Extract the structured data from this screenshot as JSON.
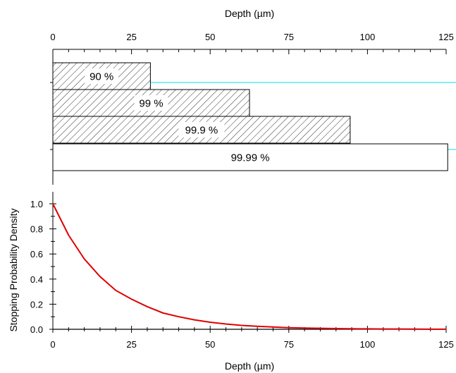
{
  "chart_data": [
    {
      "type": "bar",
      "orientation": "horizontal",
      "xlabel": "Depth (µm)",
      "xlim": [
        0,
        125
      ],
      "x_ticks": [
        "0",
        "25",
        "50",
        "75",
        "100",
        "125"
      ],
      "grid": false,
      "series": [
        {
          "name": "90 %",
          "value": 31,
          "fill": "hatched"
        },
        {
          "name": "99 %",
          "value": 62.5,
          "fill": "hatched"
        },
        {
          "name": "99.9 %",
          "value": 94.5,
          "fill": "hatched"
        },
        {
          "name": "99.99 %",
          "value": 125.5,
          "fill": "empty"
        }
      ],
      "reference_line_color": "#00e5ee",
      "bar_edge_color": "#000000"
    },
    {
      "type": "line",
      "xlabel": "Depth (µm)",
      "ylabel": "Stopping Probability Density",
      "xlim": [
        0,
        125
      ],
      "ylim": [
        0,
        1.0
      ],
      "x_ticks": [
        "0",
        "25",
        "50",
        "75",
        "100",
        "125"
      ],
      "y_ticks": [
        "0.0",
        "0.2",
        "0.4",
        "0.6",
        "0.8",
        "1.0"
      ],
      "grid": false,
      "series": [
        {
          "color": "#e00000",
          "x": [
            0,
            5,
            10,
            15,
            20,
            25,
            30,
            35,
            40,
            45,
            50,
            55,
            60,
            65,
            70,
            75,
            80,
            85,
            90,
            95,
            100,
            105,
            110,
            115,
            120,
            125
          ],
          "y": [
            1.0,
            0.75,
            0.56,
            0.42,
            0.31,
            0.24,
            0.18,
            0.13,
            0.1,
            0.075,
            0.056,
            0.042,
            0.031,
            0.024,
            0.018,
            0.013,
            0.01,
            0.0075,
            0.0056,
            0.0042,
            0.0032,
            0.0024,
            0.0018,
            0.0013,
            0.001,
            0.0008
          ]
        }
      ]
    }
  ]
}
